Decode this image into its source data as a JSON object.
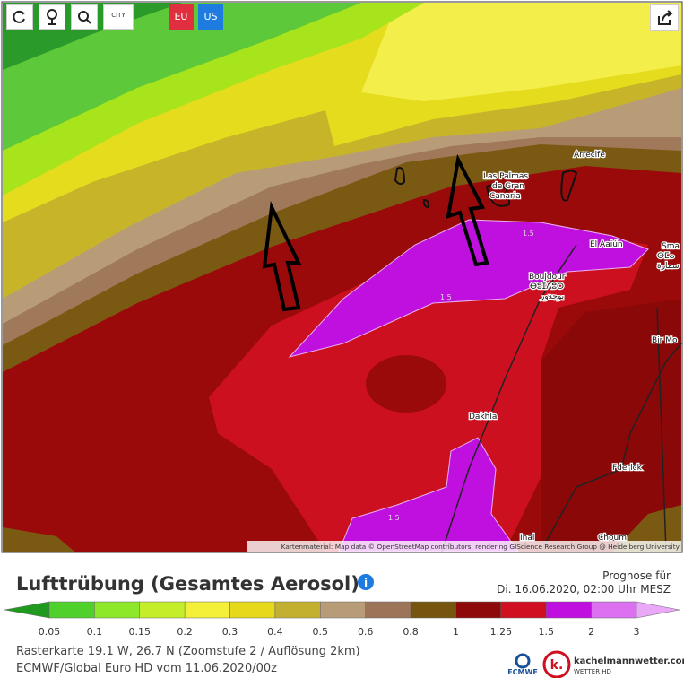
{
  "toolbar": {
    "city_button": "CITY",
    "region_buttons": [
      "EU",
      "US"
    ]
  },
  "map": {
    "places": {
      "arrecife": "Arrecife",
      "las_palmas": [
        "Las Palmas",
        "de Gran",
        "Canaria"
      ],
      "el_aaiun": "El Aaiún",
      "boujdour": [
        "Boujdour",
        "ⴱⵓⵊⴷⵓⵔ",
        "بوجدور"
      ],
      "smara": [
        "Sma",
        "ⵙⵎⴰ",
        "سمارة"
      ],
      "bir": "Bir Mo",
      "dakhla": "Dakhla",
      "fderick": "Fderick",
      "choum": "Choum",
      "inal": "Inal"
    },
    "contour_labels": [
      "1.5",
      "1.5",
      "1.5"
    ],
    "attribution": "Kartenmaterial: Map data © OpenStreetMap contributors, rendering GIScience Research Group @ Heidelberg University"
  },
  "title": "Lufttrübung (Gesamtes Aerosol)",
  "info_icon": "i",
  "forecast": {
    "label": "Prognose für",
    "time": "Di. 16.06.2020, 02:00 Uhr MESZ"
  },
  "legend": {
    "labels": [
      "0.05",
      "0.1",
      "0.15",
      "0.2",
      "0.3",
      "0.4",
      "0.5",
      "0.6",
      "0.8",
      "1",
      "1.25",
      "1.5",
      "2",
      "3"
    ],
    "colors": [
      "#1f9a1f",
      "#4fd02a",
      "#8ee82a",
      "#c4ee2a",
      "#f4f03a",
      "#e6d81a",
      "#c4b030",
      "#b89c78",
      "#9c7458",
      "#76560e",
      "#8e0a0a",
      "#d01020",
      "#c010e0",
      "#dc70f0",
      "#eaa8f8"
    ]
  },
  "footer": {
    "lines": [
      "Rasterkarte 19.1 W, 26.7 N (Zoomstufe 2 / Auflösung 2km)",
      "ECMWF/Global Euro HD vom 11.06.2020/00z"
    ],
    "ecmwf": "ECMWF",
    "brand": "kachelmannwetter.com",
    "brand_sub": "WETTER HD"
  }
}
